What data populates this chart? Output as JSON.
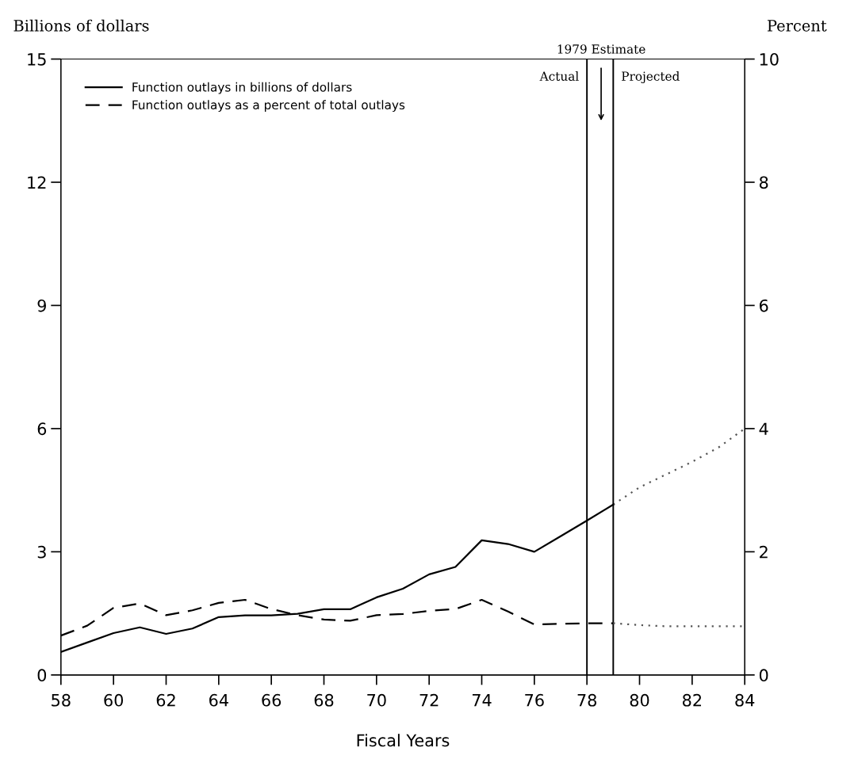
{
  "chart_data": {
    "type": "line",
    "xlabel": "Fiscal Years",
    "ylabel": "Billions of dollars",
    "y2label": "Percent",
    "xlim": [
      58,
      84
    ],
    "xticks": [
      58,
      60,
      62,
      64,
      66,
      68,
      70,
      72,
      74,
      76,
      78,
      80,
      82,
      84
    ],
    "ylim": [
      0,
      15
    ],
    "yticks": [
      0,
      3,
      6,
      9,
      12,
      15
    ],
    "y2lim": [
      0,
      10
    ],
    "y2ticks": [
      0,
      2,
      4,
      6,
      8,
      10
    ],
    "grid": false,
    "legend": "top left",
    "marker": "none",
    "series": [
      {
        "name": "Function outlays in billions of dollars",
        "color": "#000000",
        "line_style": "solid",
        "x": [
          58,
          59,
          60,
          61,
          62,
          63,
          64,
          65,
          66,
          67,
          68,
          69,
          70,
          71,
          72,
          73,
          74,
          75,
          76,
          77,
          78,
          79
        ],
        "values": [
          0.56,
          0.79,
          1.02,
          1.16,
          1.0,
          1.13,
          1.41,
          1.45,
          1.45,
          1.49,
          1.6,
          1.6,
          1.89,
          2.1,
          2.45,
          2.63,
          3.28,
          3.19,
          3.0,
          3.38,
          3.76,
          4.15
        ]
      },
      {
        "name": "Function outlays as a percent of total outlays",
        "color": "#000000",
        "line_style": "dashed",
        "axis": "y2",
        "x": [
          58,
          59,
          60,
          61,
          62,
          63,
          64,
          65,
          66,
          67,
          68,
          69,
          70,
          71,
          72,
          73,
          74,
          75,
          76,
          77,
          78,
          79
        ],
        "values": [
          0.64,
          0.8,
          1.09,
          1.16,
          0.97,
          1.05,
          1.17,
          1.22,
          1.07,
          0.97,
          0.9,
          0.88,
          0.97,
          0.99,
          1.04,
          1.07,
          1.22,
          1.03,
          0.82,
          0.83,
          0.84,
          0.84
        ]
      },
      {
        "color": "#555555",
        "line_style": "dotted",
        "x": [
          79,
          80,
          81,
          82,
          83,
          84
        ],
        "values": [
          4.15,
          4.57,
          4.88,
          5.19,
          5.54,
          6.0
        ]
      },
      {
        "color": "#555555",
        "line_style": "dotted",
        "axis": "y2",
        "x": [
          79,
          80,
          81,
          82,
          83,
          84
        ],
        "values": [
          0.84,
          0.81,
          0.79,
          0.79,
          0.79,
          0.79
        ]
      }
    ],
    "ref_lines": [
      {
        "axis": "x",
        "value": 78,
        "label": "Actual",
        "color": "#000000"
      },
      {
        "axis": "x",
        "value": 79,
        "label": "Projected",
        "color": "#000000"
      }
    ],
    "annotations": [
      "1979 Estimate"
    ]
  }
}
